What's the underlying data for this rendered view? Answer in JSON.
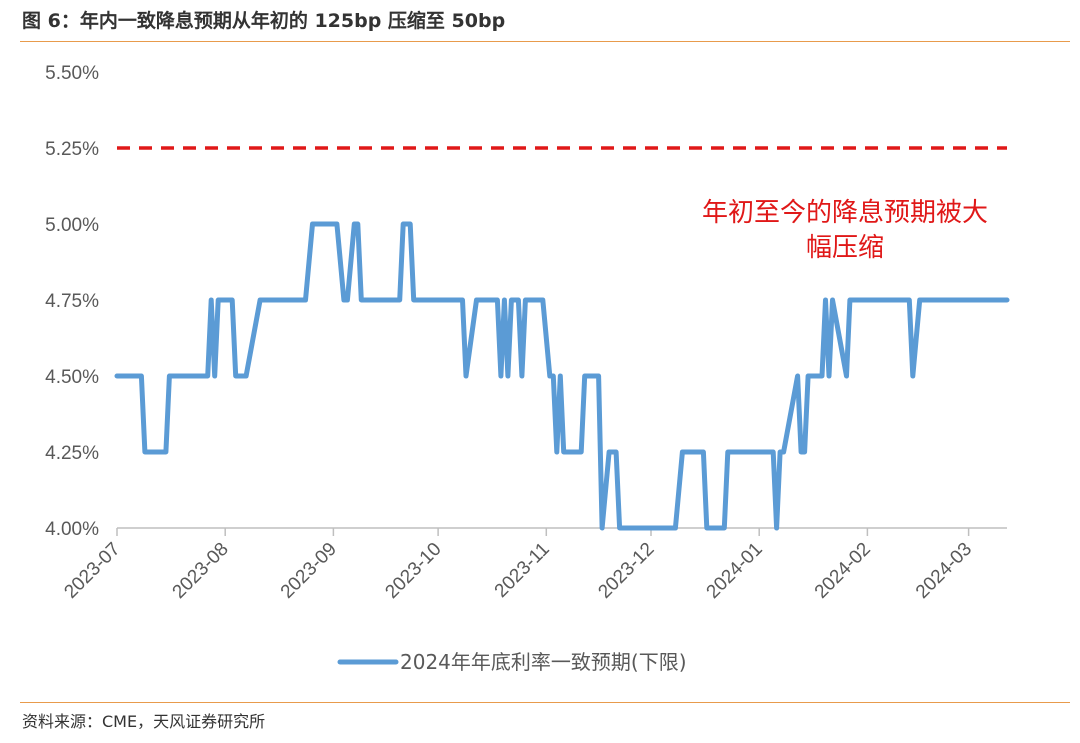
{
  "header": {
    "title": "图 6：年内一致降息预期从年初的 125bp 压缩至 50bp"
  },
  "footer": {
    "source": "资料来源：CME，天风证券研究所"
  },
  "colors": {
    "series": "#5b9bd5",
    "reference": "#e01818",
    "annotation": "#e01818",
    "rule": "#e89b4c"
  },
  "chart_data": {
    "type": "line",
    "title": "",
    "xlabel": "",
    "ylabel": "",
    "ylim": [
      4.0,
      5.5
    ],
    "y_ticks": [
      "4.00%",
      "4.25%",
      "4.50%",
      "4.75%",
      "5.00%",
      "5.25%",
      "5.50%"
    ],
    "y_tick_values": [
      4.0,
      4.25,
      4.5,
      4.75,
      5.0,
      5.25,
      5.5
    ],
    "x_ticks": [
      "2023-07",
      "2023-08",
      "2023-09",
      "2023-10",
      "2023-11",
      "2023-12",
      "2024-01",
      "2024-02",
      "2024-03"
    ],
    "x_range": [
      "2023-07-01",
      "2024-03-12"
    ],
    "grid": false,
    "legend_position": "bottom",
    "reference_line": {
      "value": 5.25,
      "style": "dashed"
    },
    "annotation": {
      "lines": [
        "年初至今的降息预期被大",
        "幅压缩"
      ]
    },
    "series": [
      {
        "name": "2024年年底利率一致预期(下限)",
        "points": [
          [
            "2023-07-01",
            4.5
          ],
          [
            "2023-07-08",
            4.5
          ],
          [
            "2023-07-09",
            4.25
          ],
          [
            "2023-07-15",
            4.25
          ],
          [
            "2023-07-16",
            4.5
          ],
          [
            "2023-07-27",
            4.5
          ],
          [
            "2023-07-28",
            4.75
          ],
          [
            "2023-07-29",
            4.5
          ],
          [
            "2023-07-30",
            4.75
          ],
          [
            "2023-08-03",
            4.75
          ],
          [
            "2023-08-04",
            4.5
          ],
          [
            "2023-08-07",
            4.5
          ],
          [
            "2023-08-11",
            4.75
          ],
          [
            "2023-08-24",
            4.75
          ],
          [
            "2023-08-26",
            5.0
          ],
          [
            "2023-09-02",
            5.0
          ],
          [
            "2023-09-04",
            4.75
          ],
          [
            "2023-09-05",
            4.75
          ],
          [
            "2023-09-07",
            5.0
          ],
          [
            "2023-09-08",
            5.0
          ],
          [
            "2023-09-09",
            4.75
          ],
          [
            "2023-09-20",
            4.75
          ],
          [
            "2023-09-21",
            5.0
          ],
          [
            "2023-09-23",
            5.0
          ],
          [
            "2023-09-24",
            4.75
          ],
          [
            "2023-10-08",
            4.75
          ],
          [
            "2023-10-09",
            4.5
          ],
          [
            "2023-10-12",
            4.75
          ],
          [
            "2023-10-18",
            4.75
          ],
          [
            "2023-10-19",
            4.5
          ],
          [
            "2023-10-20",
            4.75
          ],
          [
            "2023-10-21",
            4.5
          ],
          [
            "2023-10-22",
            4.75
          ],
          [
            "2023-10-24",
            4.75
          ],
          [
            "2023-10-25",
            4.5
          ],
          [
            "2023-10-26",
            4.75
          ],
          [
            "2023-10-31",
            4.75
          ],
          [
            "2023-11-02",
            4.5
          ],
          [
            "2023-11-03",
            4.5
          ],
          [
            "2023-11-04",
            4.25
          ],
          [
            "2023-11-05",
            4.5
          ],
          [
            "2023-11-06",
            4.25
          ],
          [
            "2023-11-11",
            4.25
          ],
          [
            "2023-11-12",
            4.5
          ],
          [
            "2023-11-16",
            4.5
          ],
          [
            "2023-11-17",
            4.0
          ],
          [
            "2023-11-19",
            4.25
          ],
          [
            "2023-11-21",
            4.25
          ],
          [
            "2023-11-22",
            4.0
          ],
          [
            "2023-12-08",
            4.0
          ],
          [
            "2023-12-10",
            4.25
          ],
          [
            "2023-12-16",
            4.25
          ],
          [
            "2023-12-17",
            4.0
          ],
          [
            "2023-12-22",
            4.0
          ],
          [
            "2023-12-23",
            4.25
          ],
          [
            "2024-01-05",
            4.25
          ],
          [
            "2024-01-06",
            4.0
          ],
          [
            "2024-01-07",
            4.25
          ],
          [
            "2024-01-08",
            4.25
          ],
          [
            "2024-01-12",
            4.5
          ],
          [
            "2024-01-13",
            4.25
          ],
          [
            "2024-01-14",
            4.25
          ],
          [
            "2024-01-15",
            4.5
          ],
          [
            "2024-01-19",
            4.5
          ],
          [
            "2024-01-20",
            4.75
          ],
          [
            "2024-01-21",
            4.5
          ],
          [
            "2024-01-22",
            4.75
          ],
          [
            "2024-01-26",
            4.5
          ],
          [
            "2024-01-27",
            4.75
          ],
          [
            "2024-02-13",
            4.75
          ],
          [
            "2024-02-14",
            4.5
          ],
          [
            "2024-02-16",
            4.75
          ],
          [
            "2024-03-12",
            4.75
          ]
        ]
      }
    ]
  }
}
